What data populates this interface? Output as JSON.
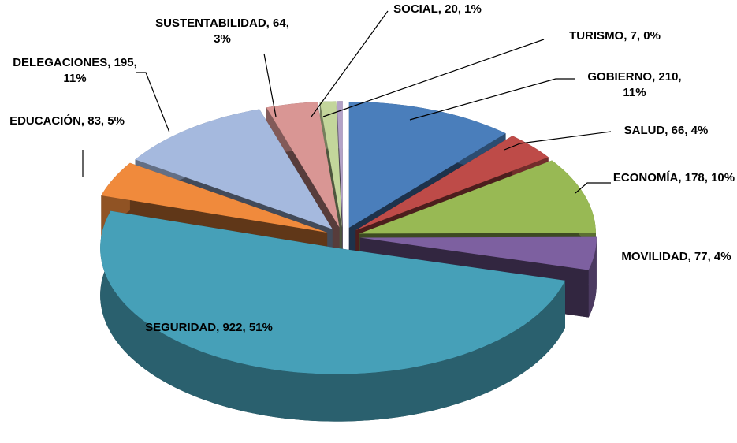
{
  "chart_data": {
    "type": "pie",
    "categories": [
      "GOBIERNO",
      "SALUD",
      "ECONOMÍA",
      "MOVILIDAD",
      "SEGURIDAD",
      "EDUCACIÓN",
      "DELEGACIONES",
      "SUSTENTABILIDAD",
      "SOCIAL",
      "TURISMO"
    ],
    "values": [
      210,
      66,
      178,
      77,
      922,
      83,
      195,
      64,
      20,
      7
    ],
    "value_labels": [
      "GOBIERNO, 210, 11%",
      "SALUD, 66, 4%",
      "ECONOMÍA, 178, 10%",
      "MOVILIDAD, 77, 4%",
      "SEGURIDAD, 922, 51%",
      "EDUCACIÓN, 83, 5%",
      "DELEGACIONES, 195, 11%",
      "SUSTENTABILIDAD, 64, 3%",
      "SOCIAL, 20, 1%",
      "TURISMO, 7, 0%"
    ],
    "colors": [
      "#4a7ebb",
      "#be4b48",
      "#98b954",
      "#7d60a0",
      "#46a0b8",
      "#f08a3c",
      "#a5b9de",
      "#d99694",
      "#c3d69b",
      "#b3a2c7"
    ]
  }
}
